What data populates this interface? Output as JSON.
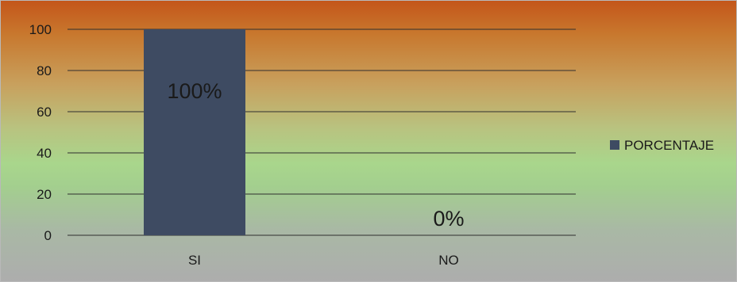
{
  "chart_data": {
    "type": "bar",
    "categories": [
      "SI",
      "NO"
    ],
    "series": [
      {
        "name": "PORCENTAJE",
        "values": [
          100,
          0
        ],
        "data_labels": [
          "100%",
          "0%"
        ],
        "color": "#3e4b62"
      }
    ],
    "ylim": [
      0,
      100
    ],
    "yticks": [
      0,
      20,
      40,
      60,
      80,
      100
    ],
    "grid": true,
    "legend": "right",
    "title": "",
    "xlabel": "",
    "ylabel": ""
  }
}
